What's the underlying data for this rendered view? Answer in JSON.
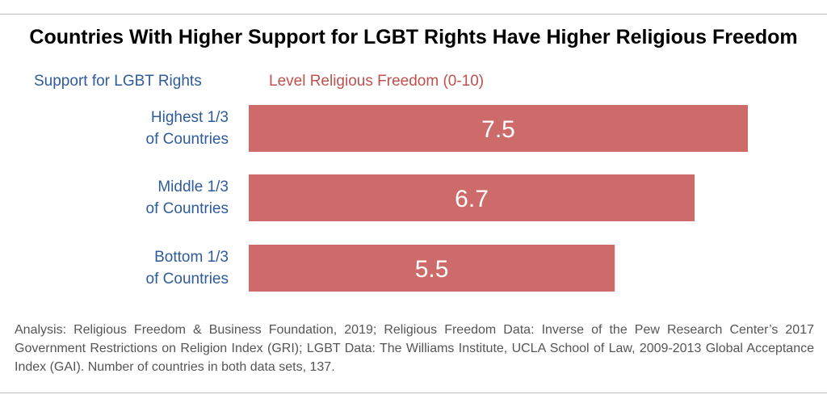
{
  "title": "Countries With Higher Support for LGBT Rights Have Higher Religious Freedom",
  "category_header": "Support for LGBT Rights",
  "value_header": "Level Religious Freedom (0-10)",
  "note": "Analysis: Religious Freedom & Business Foundation, 2019; Religious Freedom Data: Inverse of the Pew Research Center’s 2017 Government Restrictions on Religion Index (GRI); LGBT Data: The Williams Institute, UCLA School of Law, 2009-2013 Global Acceptance Index (GAI). Number of countries in both data sets, 137.",
  "colors": {
    "bar": "#cc6b6a",
    "category_text": "#2e5c9a",
    "value_header": "#c0504d",
    "bar_label": "#ffffff"
  },
  "chart_data": {
    "type": "bar",
    "orientation": "horizontal",
    "title": "Countries With Higher Support for LGBT Rights Have Higher Religious Freedom",
    "xlabel": "Level Religious Freedom (0-10)",
    "ylabel": "Support for LGBT Rights",
    "categories": [
      [
        "Highest 1/3",
        "of Countries"
      ],
      [
        "Middle 1/3",
        "of Countries"
      ],
      [
        "Bottom 1/3",
        "of Countries"
      ]
    ],
    "values": [
      7.5,
      6.7,
      5.5
    ],
    "data_labels": [
      "7.5",
      "6.7",
      "5.5"
    ],
    "grid": false,
    "legend": "none"
  }
}
